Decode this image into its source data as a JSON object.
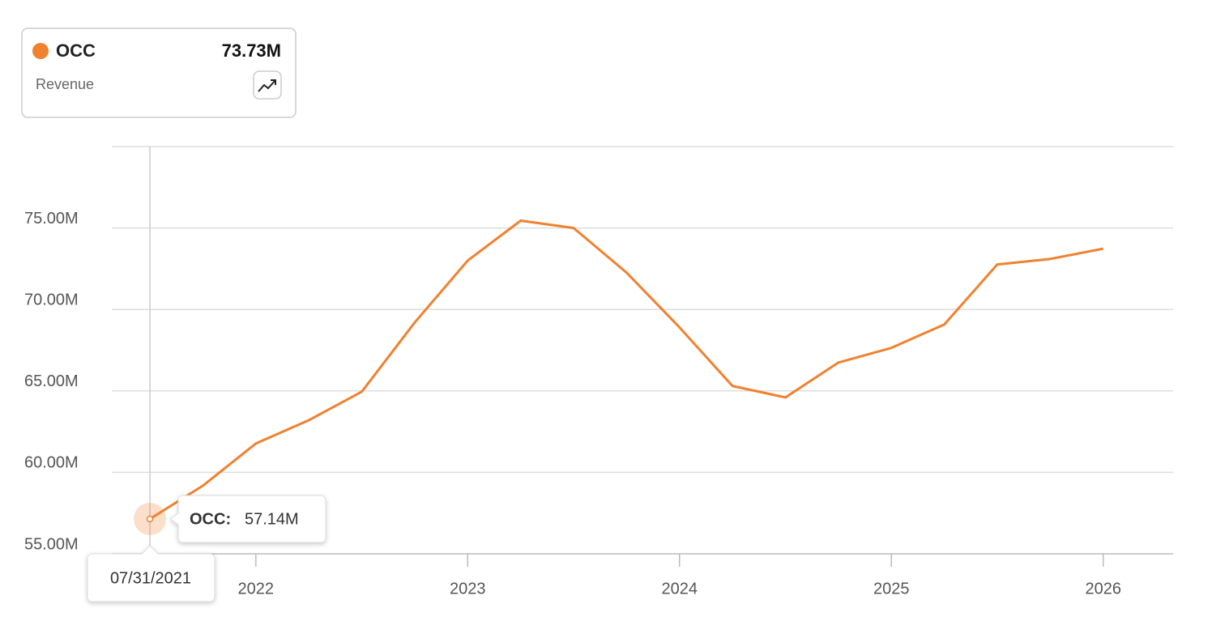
{
  "chart_data": {
    "type": "line",
    "header": {
      "metric": "Revenue"
    },
    "x": [
      2021.5,
      2021.75,
      2022,
      2022.25,
      2022.5,
      2022.75,
      2023,
      2023.25,
      2023.5,
      2023.75,
      2024,
      2024.25,
      2024.5,
      2024.75,
      2025,
      2025.25,
      2025.5,
      2025.75,
      2026
    ],
    "series": [
      {
        "name": "OCC",
        "color": "#f0812f",
        "values": [
          57.14,
          59.18,
          61.77,
          63.2,
          64.95,
          69.2,
          73.0,
          75.45,
          75.0,
          72.26,
          68.9,
          65.3,
          64.6,
          66.74,
          67.64,
          69.08,
          72.76,
          73.1,
          73.73
        ],
        "value_labels": [
          "57.14M",
          null,
          null,
          null,
          null,
          null,
          null,
          null,
          null,
          null,
          null,
          null,
          null,
          null,
          null,
          null,
          null,
          null,
          "73.73M"
        ]
      }
    ],
    "tooltip": {
      "series_label": "OCC:",
      "date": "07/31/2021"
    },
    "xlim": [
      2021.32,
      2026.33
    ],
    "xticks": [
      2022,
      2023,
      2024,
      2025,
      2026
    ],
    "ylim": [
      55,
      80
    ],
    "yticks": [
      {
        "value": 55,
        "label": "55.00M"
      },
      {
        "value": 60,
        "label": "60.00M"
      },
      {
        "value": 65,
        "label": "65.00M"
      },
      {
        "value": 70,
        "label": "70.00M"
      },
      {
        "value": 75,
        "label": "75.00M"
      }
    ],
    "grid": true
  }
}
